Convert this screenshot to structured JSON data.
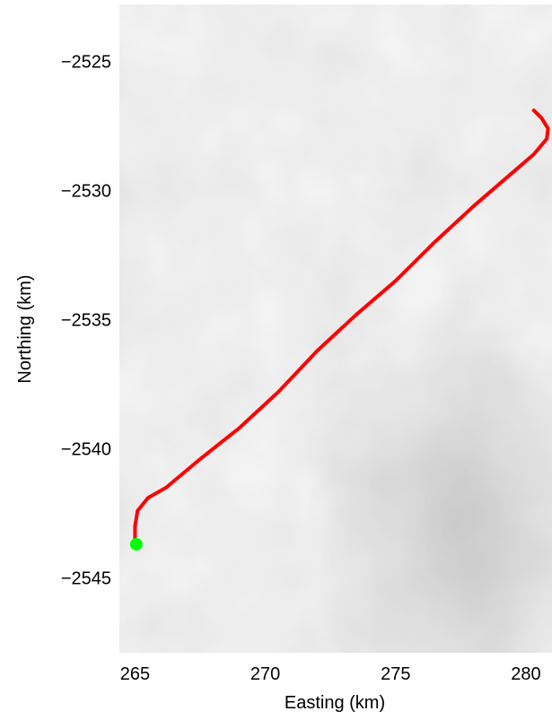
{
  "chart_data": {
    "type": "line",
    "title": "",
    "xlabel": "Easting (km)",
    "ylabel": "Northing (km)",
    "xlim": [
      264.4,
      281.0
    ],
    "ylim": [
      -2547.9,
      -2522.8
    ],
    "xticks": [
      265,
      270,
      275,
      280
    ],
    "yticks": [
      -2525,
      -2530,
      -2535,
      -2540,
      -2545
    ],
    "xtick_labels": [
      "265",
      "270",
      "275",
      "280"
    ],
    "ytick_labels": [
      "−2525",
      "−2530",
      "−2535",
      "−2540",
      "−2545"
    ],
    "grid": false,
    "background": "grayscale satellite imagery",
    "series": [
      {
        "color": "#ff0000",
        "x": [
          265.0,
          265.0,
          265.1,
          265.5,
          266.2,
          267.5,
          269.0,
          270.5,
          272.0,
          273.5,
          275.0,
          276.5,
          278.0,
          279.5,
          280.3,
          280.8,
          280.85,
          280.6,
          280.3
        ],
        "y": [
          -2543.7,
          -2543.0,
          -2542.4,
          -2541.9,
          -2541.5,
          -2540.4,
          -2539.2,
          -2537.8,
          -2536.2,
          -2534.8,
          -2533.5,
          -2532.0,
          -2530.6,
          -2529.3,
          -2528.6,
          -2528.0,
          -2527.6,
          -2527.2,
          -2526.9
        ]
      }
    ],
    "markers": [
      {
        "label": "start",
        "color": "#00ff00",
        "x": 265.05,
        "y": -2543.7
      }
    ]
  }
}
